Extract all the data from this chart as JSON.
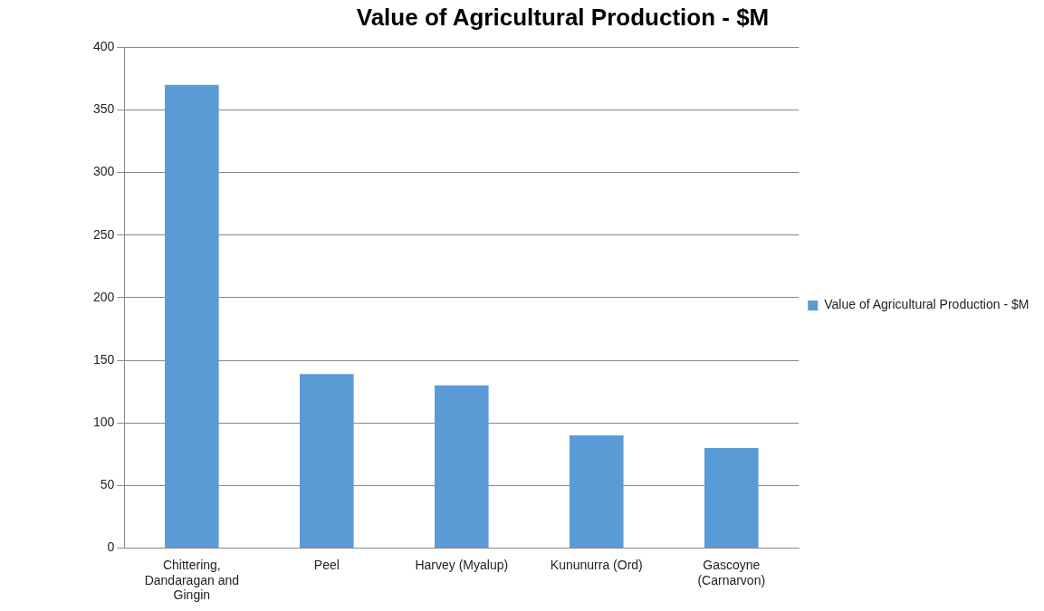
{
  "chart_data": {
    "type": "bar",
    "title": "Value of Agricultural Production - $M",
    "categories": [
      "Chittering, Dandaragan and Gingin",
      "Peel",
      "Harvey (Myalup)",
      "Kununurra (Ord)",
      "Gascoyne (Carnarvon)"
    ],
    "series": [
      {
        "name": "Value of Agricultural Production - $M",
        "color": "#5b9bd5",
        "values": [
          370,
          139,
          130,
          90,
          80
        ]
      }
    ],
    "ylim": [
      0,
      400
    ],
    "yticks": [
      0,
      50,
      100,
      150,
      200,
      250,
      300,
      350,
      400
    ],
    "grid": "y",
    "legend": "right"
  }
}
